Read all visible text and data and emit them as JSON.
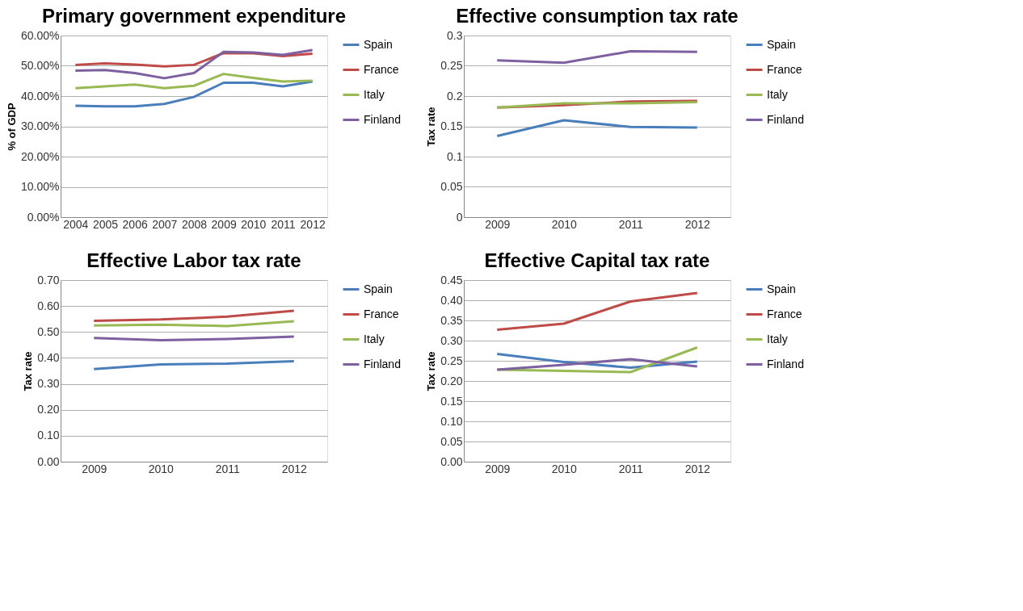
{
  "chart_data": [
    {
      "type": "line",
      "title": "Primary government expenditure",
      "ylabel": "% of GDP",
      "categories": [
        "2004",
        "2005",
        "2006",
        "2007",
        "2008",
        "2009",
        "2010",
        "2011",
        "2012"
      ],
      "ylim": [
        0,
        60
      ],
      "yticks": [
        {
          "value": 0,
          "label": "0.00%"
        },
        {
          "value": 10,
          "label": "10.00%"
        },
        {
          "value": 20,
          "label": "20.00%"
        },
        {
          "value": 30,
          "label": "30.00%"
        },
        {
          "value": 40,
          "label": "40.00%"
        },
        {
          "value": 50,
          "label": "50.00%"
        },
        {
          "value": 60,
          "label": "60.00%"
        }
      ],
      "grid": "y",
      "legend": "right",
      "marker": "none",
      "line_style": "solid",
      "series": [
        {
          "name": "Spain",
          "color": "#4a7ebb",
          "values": [
            36.8,
            36.6,
            36.6,
            37.4,
            39.7,
            44.4,
            44.4,
            43.2,
            44.8
          ]
        },
        {
          "name": "France",
          "color": "#be4b48",
          "values": [
            50.3,
            50.8,
            50.4,
            49.8,
            50.3,
            54.2,
            54.1,
            53.2,
            54.0
          ]
        },
        {
          "name": "Italy",
          "color": "#98b954",
          "values": [
            42.6,
            43.2,
            43.8,
            42.6,
            43.4,
            47.3,
            46.0,
            44.8,
            45.1
          ]
        },
        {
          "name": "Finland",
          "color": "#7d60a0",
          "values": [
            48.4,
            48.6,
            47.6,
            45.9,
            47.6,
            54.6,
            54.4,
            53.6,
            55.2
          ]
        }
      ]
    },
    {
      "type": "line",
      "title": "Effective consumption tax rate",
      "ylabel": "Tax rate",
      "categories": [
        "2009",
        "2010",
        "2011",
        "2012"
      ],
      "ylim": [
        0,
        0.3
      ],
      "yticks": [
        0,
        0.05,
        0.1,
        0.15,
        0.2,
        0.25,
        0.3
      ],
      "grid": "y",
      "legend": "right",
      "marker": "none",
      "line_style": "solid",
      "series": [
        {
          "name": "Spain",
          "color": "#4a7ebb",
          "values": [
            0.134,
            0.16,
            0.149,
            0.148
          ]
        },
        {
          "name": "France",
          "color": "#be4b48",
          "values": [
            0.181,
            0.185,
            0.191,
            0.192
          ]
        },
        {
          "name": "Italy",
          "color": "#98b954",
          "values": [
            0.181,
            0.188,
            0.188,
            0.19
          ]
        },
        {
          "name": "Finland",
          "color": "#7d60a0",
          "values": [
            0.259,
            0.255,
            0.274,
            0.273
          ]
        }
      ]
    },
    {
      "type": "line",
      "title": "Effective Labor tax rate",
      "ylabel": "Tax rate",
      "categories": [
        "2009",
        "2010",
        "2011",
        "2012"
      ],
      "ylim": [
        0,
        0.7
      ],
      "yticks": [
        {
          "value": 0,
          "label": "0.00"
        },
        {
          "value": 0.1,
          "label": "0.10"
        },
        {
          "value": 0.2,
          "label": "0.20"
        },
        {
          "value": 0.3,
          "label": "0.30"
        },
        {
          "value": 0.4,
          "label": "0.40"
        },
        {
          "value": 0.5,
          "label": "0.50"
        },
        {
          "value": 0.6,
          "label": "0.60"
        },
        {
          "value": 0.7,
          "label": "0.70"
        }
      ],
      "grid": "y",
      "legend": "right",
      "marker": "none",
      "line_style": "solid",
      "series": [
        {
          "name": "Spain",
          "color": "#4a7ebb",
          "values": [
            0.357,
            0.375,
            0.378,
            0.387
          ]
        },
        {
          "name": "France",
          "color": "#be4b48",
          "values": [
            0.543,
            0.548,
            0.559,
            0.582
          ]
        },
        {
          "name": "Italy",
          "color": "#98b954",
          "values": [
            0.525,
            0.528,
            0.523,
            0.541
          ]
        },
        {
          "name": "Finland",
          "color": "#7d60a0",
          "values": [
            0.477,
            0.468,
            0.473,
            0.482
          ]
        }
      ]
    },
    {
      "type": "line",
      "title": "Effective Capital tax rate",
      "ylabel": "Tax rate",
      "categories": [
        "2009",
        "2010",
        "2011",
        "2012"
      ],
      "ylim": [
        0,
        0.45
      ],
      "yticks": [
        {
          "value": 0,
          "label": "0.00"
        },
        {
          "value": 0.05,
          "label": "0.05"
        },
        {
          "value": 0.1,
          "label": "0.10"
        },
        {
          "value": 0.15,
          "label": "0.15"
        },
        {
          "value": 0.2,
          "label": "0.20"
        },
        {
          "value": 0.25,
          "label": "0.25"
        },
        {
          "value": 0.3,
          "label": "0.30"
        },
        {
          "value": 0.35,
          "label": "0.35"
        },
        {
          "value": 0.4,
          "label": "0.40"
        },
        {
          "value": 0.45,
          "label": "0.45"
        }
      ],
      "grid": "y",
      "legend": "right",
      "marker": "none",
      "line_style": "solid",
      "series": [
        {
          "name": "Spain",
          "color": "#4a7ebb",
          "values": [
            0.267,
            0.247,
            0.233,
            0.248
          ]
        },
        {
          "name": "France",
          "color": "#be4b48",
          "values": [
            0.327,
            0.342,
            0.397,
            0.418
          ]
        },
        {
          "name": "Italy",
          "color": "#98b954",
          "values": [
            0.228,
            0.225,
            0.222,
            0.283
          ]
        },
        {
          "name": "Finland",
          "color": "#7d60a0",
          "values": [
            0.228,
            0.24,
            0.254,
            0.236
          ]
        }
      ]
    }
  ]
}
